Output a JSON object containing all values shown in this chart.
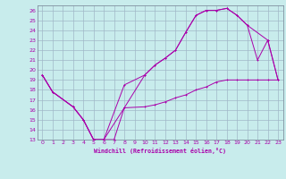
{
  "xlabel": "Windchill (Refroidissement éolien,°C)",
  "bg_color": "#c8ecec",
  "grid_color": "#a0b8c8",
  "line_color": "#aa00aa",
  "spine_color": "#8090a0",
  "xlim": [
    -0.5,
    23.5
  ],
  "ylim": [
    13,
    26.5
  ],
  "xticks": [
    0,
    1,
    2,
    3,
    4,
    5,
    6,
    7,
    8,
    9,
    10,
    11,
    12,
    13,
    14,
    15,
    16,
    17,
    18,
    19,
    20,
    21,
    22,
    23
  ],
  "yticks": [
    13,
    14,
    15,
    16,
    17,
    18,
    19,
    20,
    21,
    22,
    23,
    24,
    25,
    26
  ],
  "line1_x": [
    0,
    1,
    3,
    4,
    5,
    6,
    7,
    8,
    10,
    11,
    12,
    13,
    14,
    15,
    16,
    17,
    18,
    19,
    20,
    21,
    22,
    23
  ],
  "line1_y": [
    19.5,
    17.8,
    16.3,
    15.0,
    13.0,
    13.0,
    13.0,
    16.2,
    16.3,
    16.5,
    16.8,
    17.2,
    17.5,
    18.0,
    18.3,
    18.8,
    19.0,
    19.0,
    19.0,
    19.0,
    19.0,
    19.0
  ],
  "line2_x": [
    0,
    1,
    3,
    4,
    5,
    6,
    8,
    10,
    11,
    12,
    13,
    14,
    15,
    16,
    17,
    18,
    19,
    20,
    21,
    22,
    23
  ],
  "line2_y": [
    19.5,
    17.8,
    16.3,
    15.0,
    13.0,
    13.0,
    18.5,
    19.5,
    20.5,
    21.2,
    22.0,
    23.8,
    25.5,
    26.0,
    26.0,
    26.2,
    25.5,
    24.5,
    21.0,
    23.0,
    19.0
  ],
  "line3_x": [
    0,
    1,
    3,
    4,
    5,
    6,
    8,
    10,
    11,
    12,
    13,
    14,
    15,
    16,
    17,
    18,
    19,
    20,
    22,
    23
  ],
  "line3_y": [
    19.5,
    17.8,
    16.3,
    15.0,
    13.0,
    13.0,
    16.2,
    19.5,
    20.5,
    21.2,
    22.0,
    23.8,
    25.5,
    26.0,
    26.0,
    26.2,
    25.5,
    24.5,
    23.0,
    19.0
  ]
}
